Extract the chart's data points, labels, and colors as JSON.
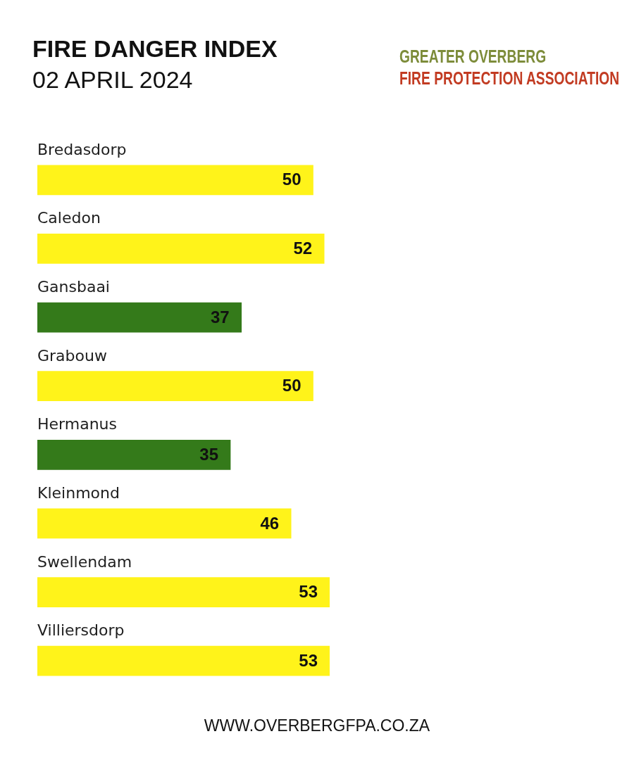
{
  "chart_data": {
    "type": "bar",
    "orientation": "horizontal",
    "title": "FIRE DANGER INDEX",
    "subtitle": "02 APRIL 2024",
    "categories": [
      "Bredasdorp",
      "Caledon",
      "Gansbaai",
      "Grabouw",
      "Hermanus",
      "Kleinmond",
      "Swellendam",
      "Villiersdorp"
    ],
    "values": [
      50,
      52,
      37,
      50,
      35,
      46,
      53,
      53
    ],
    "colors": [
      "#fff31a",
      "#fff31a",
      "#347a1a",
      "#fff31a",
      "#347a1a",
      "#fff31a",
      "#fff31a",
      "#fff31a"
    ],
    "data_labels": true,
    "tick_labels": "y",
    "annotations": [
      "GREATER OVERBERG",
      "FIRE PROTECTION ASSOCIATION",
      "WWW.OVERBERGFPA.CO.ZA"
    ]
  }
}
